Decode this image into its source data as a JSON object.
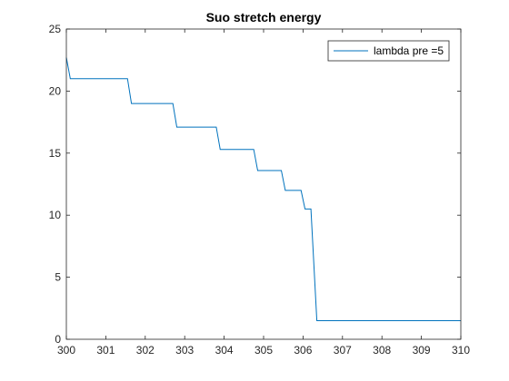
{
  "chart_data": {
    "type": "line",
    "title": "Suo stretch energy",
    "xlabel": "",
    "ylabel": "",
    "xlim": [
      300,
      310
    ],
    "ylim": [
      0,
      25
    ],
    "xticks": [
      300,
      301,
      302,
      303,
      304,
      305,
      306,
      307,
      308,
      309,
      310
    ],
    "yticks": [
      0,
      5,
      10,
      15,
      20,
      25
    ],
    "grid": false,
    "legend_placement": "top-right",
    "series": [
      {
        "name": "lambda pre =5",
        "color": "#0072bd",
        "x": [
          300.0,
          300.1,
          301.55,
          301.65,
          302.7,
          302.8,
          303.8,
          303.9,
          304.75,
          304.85,
          305.45,
          305.55,
          305.95,
          306.05,
          306.2,
          306.35,
          310.0
        ],
        "y": [
          22.7,
          21.0,
          21.0,
          19.0,
          19.0,
          17.1,
          17.1,
          15.3,
          15.3,
          13.6,
          13.6,
          12.0,
          12.0,
          10.5,
          10.5,
          1.5,
          1.5
        ]
      }
    ]
  }
}
